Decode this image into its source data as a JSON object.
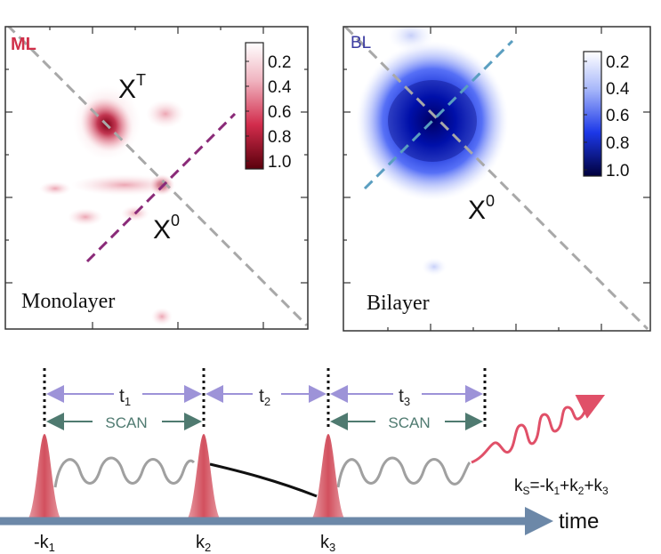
{
  "panels": {
    "monolayer": {
      "tag": "ML",
      "caption": "Monolayer",
      "peak_upper": "X",
      "peak_upper_sup": "T",
      "peak_lower": "X",
      "peak_lower_sup": "0",
      "colorbar_ticks": [
        "0.2",
        "0.4",
        "0.6",
        "0.8",
        "1.0"
      ],
      "tag_color": "#d0304a",
      "accent_color": "#8a2a78"
    },
    "bilayer": {
      "tag": "BL",
      "caption": "Bilayer",
      "peak_label": "X",
      "peak_label_sup": "0",
      "colorbar_ticks": [
        "0.2",
        "0.4",
        "0.6",
        "0.8",
        "1.0"
      ],
      "tag_color": "#3a3aa0",
      "accent_color": "#5a9ec0"
    }
  },
  "sequence": {
    "time_label": "time",
    "delays": [
      {
        "name": "t",
        "sub": "1"
      },
      {
        "name": "t",
        "sub": "2"
      },
      {
        "name": "t",
        "sub": "3"
      }
    ],
    "scan_label": "SCAN",
    "pulses": [
      {
        "sign": "-",
        "name": "k",
        "sub": "1"
      },
      {
        "sign": "",
        "name": "k",
        "sub": "2"
      },
      {
        "sign": "",
        "name": "k",
        "sub": "3"
      }
    ],
    "signal": {
      "lhs_name": "k",
      "lhs_sub": "S",
      "terms": [
        {
          "sign": "=-",
          "name": "k",
          "sub": "1"
        },
        {
          "sign": "+",
          "name": "k",
          "sub": "2"
        },
        {
          "sign": "+",
          "name": "k",
          "sub": "3"
        }
      ]
    },
    "colors": {
      "arrow_axis": "#6c88a8",
      "delay_arrow": "#9d93d8",
      "scan_arrow": "#4f7a70",
      "pulse": "#d2505e",
      "oscillation": "#a0a0a0",
      "signal": "#e05068"
    }
  }
}
